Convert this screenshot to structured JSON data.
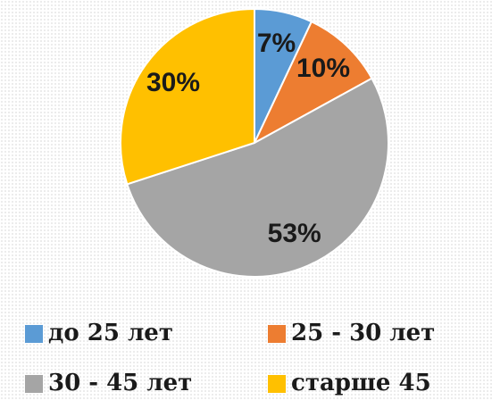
{
  "chart_data": {
    "type": "pie",
    "categories": [
      "до 25 лет",
      "25 - 30 лет",
      "30 - 45 лет",
      "старше 45"
    ],
    "values": [
      7,
      10,
      53,
      30
    ],
    "value_labels": [
      "7%",
      "10%",
      "53%",
      "30%"
    ],
    "colors": [
      "#5b9bd5",
      "#ed7d31",
      "#a5a5a5",
      "#ffc000"
    ],
    "legend": "bottom"
  }
}
